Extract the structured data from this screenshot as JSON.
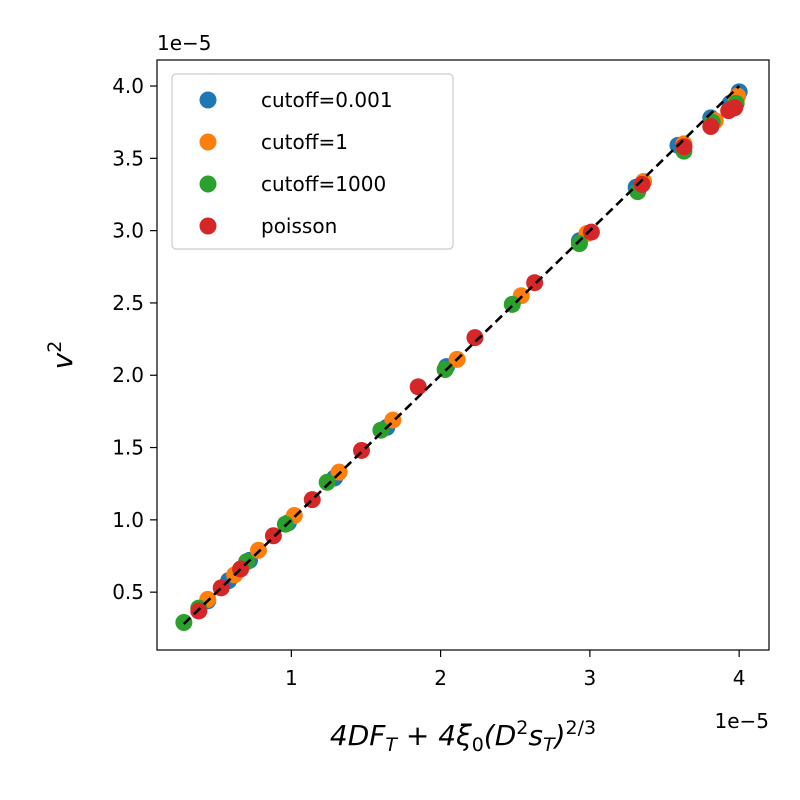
{
  "chart_data": {
    "type": "scatter",
    "x_offset_text": "1e−5",
    "y_offset_text": "1e−5",
    "xlim": [
      0.1,
      4.2
    ],
    "ylim": [
      0.1,
      4.18
    ],
    "x_ticks": [
      1,
      2,
      3,
      4
    ],
    "x_tick_labels": [
      "1",
      "2",
      "3",
      "4"
    ],
    "y_ticks": [
      0.5,
      1.0,
      1.5,
      2.0,
      2.5,
      3.0,
      3.5,
      4.0
    ],
    "y_tick_labels": [
      "0.5",
      "1.0",
      "1.5",
      "2.0",
      "2.5",
      "3.0",
      "3.5",
      "4.0"
    ],
    "legend_position": "top-left",
    "reference_line": {
      "style": "dashed",
      "color": "#000000",
      "x": [
        0.28,
        4.0
      ],
      "y": [
        0.28,
        4.0
      ]
    },
    "series": [
      {
        "name": "cutoff=0.001",
        "color": "#1f77b4",
        "x": [
          0.44,
          0.58,
          0.72,
          0.98,
          1.29,
          1.64,
          2.04,
          2.93,
          3.31,
          3.59,
          3.81,
          3.94,
          4.0
        ],
        "y": [
          0.44,
          0.58,
          0.72,
          0.98,
          1.29,
          1.64,
          2.06,
          2.93,
          3.3,
          3.59,
          3.78,
          3.88,
          3.96
        ]
      },
      {
        "name": "cutoff=1",
        "color": "#ff7f0e",
        "x": [
          0.44,
          0.62,
          0.78,
          1.02,
          1.32,
          1.68,
          2.11,
          2.54,
          2.98,
          3.36,
          3.63,
          3.84,
          3.98,
          3.99
        ],
        "y": [
          0.45,
          0.62,
          0.79,
          1.03,
          1.33,
          1.69,
          2.11,
          2.55,
          2.98,
          3.34,
          3.6,
          3.76,
          3.9,
          3.93
        ]
      },
      {
        "name": "cutoff=1000",
        "color": "#2ca02c",
        "x": [
          0.28,
          0.38,
          0.7,
          0.96,
          1.24,
          1.6,
          2.03,
          2.48,
          2.93,
          3.32,
          3.63,
          3.82,
          3.98
        ],
        "y": [
          0.29,
          0.39,
          0.71,
          0.97,
          1.26,
          1.62,
          2.04,
          2.49,
          2.91,
          3.27,
          3.55,
          3.75,
          3.88
        ]
      },
      {
        "name": "poisson",
        "color": "#d62728",
        "x": [
          0.38,
          0.53,
          0.66,
          0.88,
          1.14,
          1.47,
          1.85,
          2.23,
          2.63,
          3.01,
          3.35,
          3.63,
          3.81,
          3.93,
          3.97
        ],
        "y": [
          0.37,
          0.53,
          0.66,
          0.89,
          1.14,
          1.48,
          1.92,
          2.26,
          2.64,
          2.99,
          3.32,
          3.58,
          3.72,
          3.83,
          3.85
        ]
      }
    ]
  }
}
